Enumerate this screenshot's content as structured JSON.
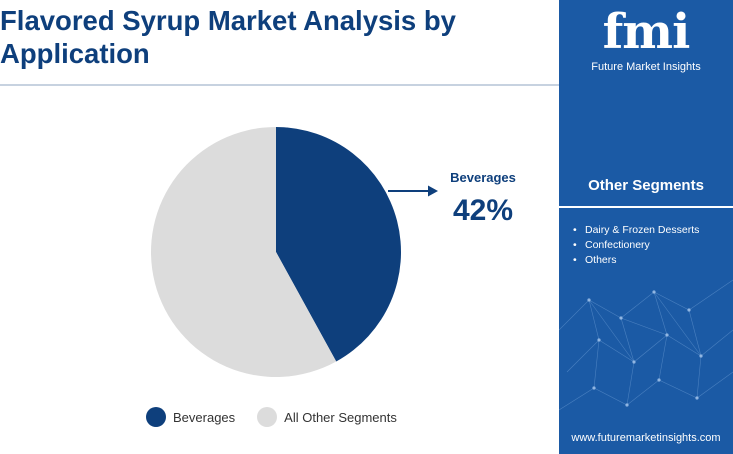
{
  "title": "Flavored Syrup Market Analysis by Application",
  "chart_data": {
    "type": "pie",
    "title": "Flavored Syrup Market Analysis by Application",
    "slices": [
      {
        "label": "Beverages",
        "value": 42,
        "color": "#0e3f7c"
      },
      {
        "label": "All Other Segments",
        "value": 58,
        "color": "#dcdcdc"
      }
    ],
    "callout": {
      "label": "Beverages",
      "value_text": "42%"
    },
    "legend": {
      "placement": "bottom"
    }
  },
  "sidebar": {
    "logo_mark": "fmi",
    "logo_text": "Future Market Insights",
    "heading": "Other Segments",
    "items": [
      "Dairy & Frozen Desserts",
      "Confectionery",
      "Others"
    ],
    "website": "www.futuremarketinsights.com",
    "background_color": "#1b5aa5"
  }
}
